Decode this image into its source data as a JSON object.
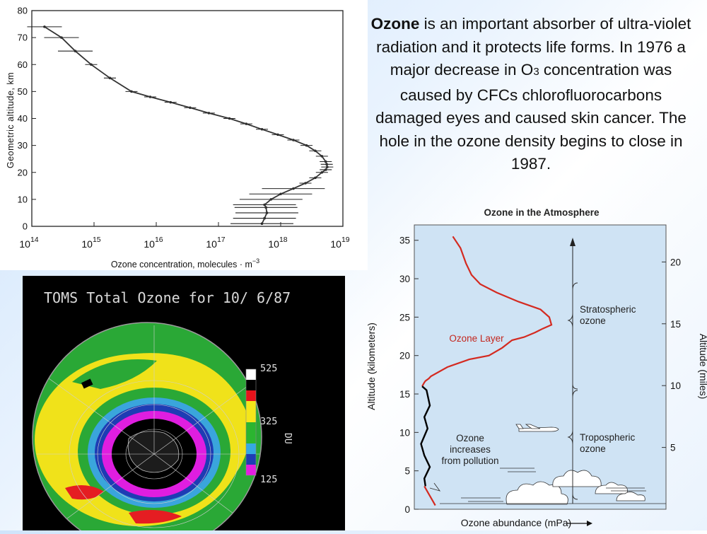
{
  "text": {
    "lead_bold": "Ozone",
    "line_part1": " is an important absorber of ultra-violet radiation and it protects life forms. In 1976 a major decrease in O",
    "subscript_digit": "3",
    "line_part2": " concentration was caused by CFCs chlorofluorocarbons damaged eyes and caused skin cancer.  The hole in the ozone density begins to close in 1987."
  },
  "toms_map": {
    "title": "TOMS Total Ozone for 10/ 6/87",
    "unit": "DU",
    "scale_labels": [
      "525",
      "325",
      "125"
    ],
    "scale_colors": [
      "#ffffff",
      "#000000",
      "#e8121b",
      "#f5e61a",
      "#f5e61a",
      "#2bb530",
      "#2bb530",
      "#35a9e3",
      "#1e3db5",
      "#e41ee2"
    ]
  },
  "chart_data": [
    {
      "type": "line",
      "title": "",
      "xlabel": "Ozone concentration, molecules · m",
      "xlabel_exponent": "−3",
      "ylabel": "Geometric altitude, km",
      "xscale": "log",
      "xlim": [
        100000000000000.0,
        1e+19
      ],
      "ylim": [
        0,
        80
      ],
      "x_ticks": [
        {
          "base": "10",
          "exp": "14"
        },
        {
          "base": "10",
          "exp": "15"
        },
        {
          "base": "10",
          "exp": "16"
        },
        {
          "base": "10",
          "exp": "17"
        },
        {
          "base": "10",
          "exp": "18"
        },
        {
          "base": "10",
          "exp": "19"
        }
      ],
      "y_ticks": [
        "0",
        "10",
        "20",
        "30",
        "40",
        "50",
        "60",
        "70",
        "80"
      ],
      "error_bars": true,
      "grid": false,
      "series": [
        {
          "x": [
            5e+17,
            5.5e+17,
            6e+17,
            5.8e+17,
            5.5e+17,
            7e+17,
            1e+18,
            1.6e+18,
            2.5e+18,
            3.6e+18,
            4.6e+18,
            5.3e+18,
            5.6e+18,
            5.5e+18,
            5.3e+18,
            4.6e+18,
            3.6e+18,
            2.6e+18,
            1.6e+18,
            9e+17,
            5e+17,
            2.8e+17,
            1.5e+17,
            7e+16,
            3.5e+16,
            1.7e+16,
            8000000000000000.0,
            4000000000000000.0,
            1800000000000000.0,
            900000000000000.0,
            500000000000000.0,
            300000000000000.0,
            160000000000000.0
          ],
          "y": [
            1,
            3,
            5,
            7,
            8,
            10,
            12,
            14,
            16,
            18,
            20,
            21,
            22,
            23,
            24,
            26,
            28,
            30,
            32,
            34,
            36,
            38,
            40,
            42,
            44,
            46,
            48,
            50,
            55,
            60,
            65,
            70,
            74
          ]
        }
      ]
    },
    {
      "type": "line",
      "title": "Ozone in the Atmosphere",
      "xlabel": "Ozone abundance (mPa)",
      "ylabel": "Altitude (kilometers)",
      "ylabel_right": "Altitude (miles)",
      "ylim": [
        0,
        37
      ],
      "y_ticks": [
        "0",
        "5",
        "10",
        "15",
        "20",
        "25",
        "30",
        "35"
      ],
      "y_ticks_right": [
        "5",
        "10",
        "15",
        "20"
      ],
      "annotations": [
        "Ozone Layer",
        "Stratospheric",
        "ozone",
        "Tropospheric",
        "ozone",
        "Ozone",
        "increases",
        "from pollution"
      ],
      "colors": {
        "stratosphere": "#d42a20",
        "troposphere": "#000000"
      },
      "series": [
        {
          "name": "Ozone Layer",
          "x": [
            0.2,
            0.4,
            0.5,
            0.8,
            1.0,
            2.5,
            4.5,
            6.3,
            7.5,
            8.4,
            9.5,
            10.5,
            11.2,
            12.0,
            11.8,
            11.0,
            9.0,
            7.0,
            5.5,
            4.7,
            4.2,
            3.7,
            3.0
          ],
          "y": [
            16,
            16.5,
            16.7,
            17,
            17.3,
            18.5,
            19.5,
            20.0,
            21.0,
            22.0,
            22.4,
            23.0,
            23.5,
            24.0,
            25.0,
            26.0,
            27.0,
            28.2,
            29.3,
            30.5,
            32.0,
            34.0,
            35.5
          ]
        },
        {
          "x": [
            0.2,
            0.6,
            0.9,
            0.4,
            0.7,
            0.1,
            0.4,
            0.9,
            0.4,
            0.5
          ],
          "y": [
            16,
            15.5,
            13.5,
            12,
            10.5,
            8.5,
            7,
            5.5,
            4,
            3
          ]
        },
        {
          "x": [
            0.4,
            0.8,
            1.2,
            1.4
          ],
          "y": [
            3,
            2,
            1,
            0.5
          ]
        }
      ]
    }
  ]
}
